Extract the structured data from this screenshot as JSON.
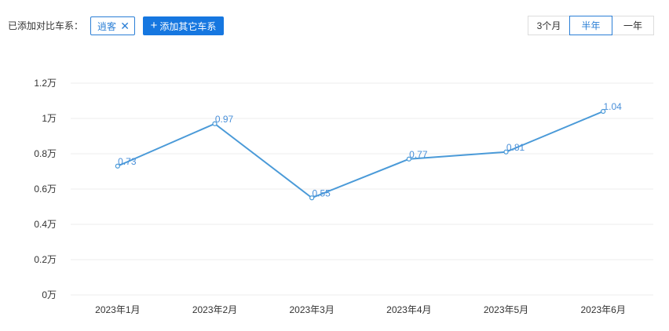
{
  "filter": {
    "label": "已添加对比车系：",
    "selected_tag": "逍客",
    "close_icon": "close-icon",
    "add_button": "添加其它车系",
    "add_icon": "plus-icon"
  },
  "range": {
    "options": [
      "3个月",
      "半年",
      "一年"
    ],
    "selected": "半年"
  },
  "colors": {
    "accent": "#2b7fd6",
    "line": "#4a9ad8",
    "grid": "#ececec"
  },
  "chart_data": {
    "type": "line",
    "categories": [
      "2023年1月",
      "2023年2月",
      "2023年3月",
      "2023年4月",
      "2023年5月",
      "2023年6月"
    ],
    "series": [
      {
        "values": [
          0.73,
          0.97,
          0.55,
          0.77,
          0.81,
          1.04
        ]
      }
    ],
    "data_labels": [
      "0.73",
      "0.97",
      "0.55",
      "0.77",
      "0.81",
      "1.04"
    ],
    "y_ticks": [
      {
        "value": 0,
        "label": "0万"
      },
      {
        "value": 0.2,
        "label": "0.2万"
      },
      {
        "value": 0.4,
        "label": "0.4万"
      },
      {
        "value": 0.6,
        "label": "0.6万"
      },
      {
        "value": 0.8,
        "label": "0.8万"
      },
      {
        "value": 1.0,
        "label": "1万"
      },
      {
        "value": 1.2,
        "label": "1.2万"
      }
    ],
    "ylim": [
      0,
      1.2
    ],
    "grid": true,
    "legend": "none"
  }
}
